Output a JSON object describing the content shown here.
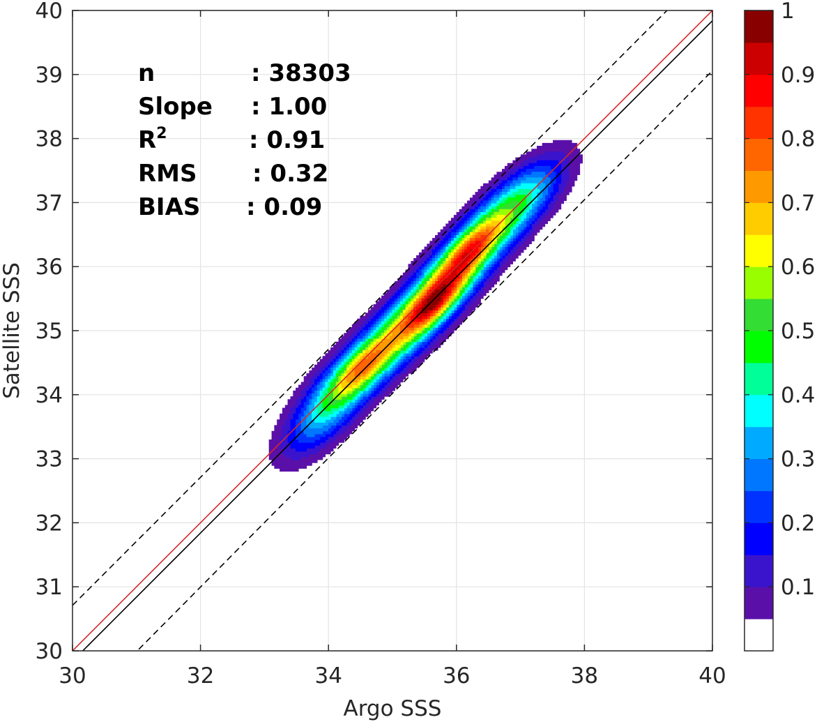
{
  "chart_data": {
    "type": "contour",
    "title": "",
    "xlabel": "Argo SSS",
    "ylabel": "Satellite SSS",
    "xlim": [
      30,
      40
    ],
    "ylim": [
      30,
      40
    ],
    "xticks": [
      "30",
      "32",
      "34",
      "36",
      "38",
      "40"
    ],
    "yticks": [
      "30",
      "31",
      "32",
      "33",
      "34",
      "35",
      "36",
      "37",
      "38",
      "39",
      "40"
    ],
    "grid": true,
    "stats": [
      {
        "label": "n",
        "value": ": 38303"
      },
      {
        "label": "Slope",
        "value": ": 1.00"
      },
      {
        "label": "R",
        "sup": "2",
        "value": ": 0.91"
      },
      {
        "label": "RMS",
        "value": ": 0.32"
      },
      {
        "label": "BIAS",
        "value": ": 0.09"
      }
    ],
    "lines": [
      {
        "kind": "one-to-one",
        "color": "#d62728",
        "style": "solid",
        "points": [
          [
            30,
            30
          ],
          [
            40,
            40
          ]
        ]
      },
      {
        "kind": "regression",
        "color": "#000000",
        "style": "solid",
        "points": [
          [
            30,
            29.84
          ],
          [
            40,
            39.84
          ]
        ]
      },
      {
        "kind": "upper-bound",
        "color": "#000000",
        "style": "dashed",
        "points": [
          [
            30,
            30.71
          ],
          [
            40,
            40.71
          ]
        ]
      },
      {
        "kind": "lower-bound",
        "color": "#000000",
        "style": "dashed",
        "points": [
          [
            30,
            28.98
          ],
          [
            40,
            39.06
          ]
        ]
      }
    ],
    "density_ridge": {
      "points": [
        [
          33.75,
          33.4
        ],
        [
          34.05,
          33.95
        ],
        [
          34.5,
          34.4
        ],
        [
          34.9,
          34.75
        ],
        [
          35.25,
          35.1
        ],
        [
          35.6,
          35.45
        ],
        [
          35.85,
          35.75
        ],
        [
          36.15,
          36.15
        ],
        [
          36.5,
          36.55
        ],
        [
          36.9,
          36.95
        ],
        [
          37.3,
          37.3
        ]
      ],
      "peaks": [
        {
          "x": 35.65,
          "y": 35.42,
          "value": 1.0
        },
        {
          "x": 36.2,
          "y": 36.25,
          "value": 0.85
        },
        {
          "x": 34.5,
          "y": 34.4,
          "value": 0.7
        }
      ]
    },
    "colorbar": {
      "ticks": [
        "0.1",
        "0.2",
        "0.3",
        "0.4",
        "0.5",
        "0.6",
        "0.7",
        "0.8",
        "0.9",
        "1"
      ],
      "levels": [
        {
          "min": 0.0,
          "max": 0.05,
          "color": "#ffffff"
        },
        {
          "min": 0.05,
          "max": 0.1,
          "color": "#5a10a8"
        },
        {
          "min": 0.1,
          "max": 0.15,
          "color": "#3a14cc"
        },
        {
          "min": 0.15,
          "max": 0.2,
          "color": "#0000ff"
        },
        {
          "min": 0.2,
          "max": 0.25,
          "color": "#0033ff"
        },
        {
          "min": 0.25,
          "max": 0.3,
          "color": "#0077ff"
        },
        {
          "min": 0.3,
          "max": 0.35,
          "color": "#00aaff"
        },
        {
          "min": 0.35,
          "max": 0.4,
          "color": "#00ffff"
        },
        {
          "min": 0.4,
          "max": 0.45,
          "color": "#00ff99"
        },
        {
          "min": 0.45,
          "max": 0.5,
          "color": "#00ff00"
        },
        {
          "min": 0.5,
          "max": 0.55,
          "color": "#33dd33"
        },
        {
          "min": 0.55,
          "max": 0.6,
          "color": "#99ff00"
        },
        {
          "min": 0.6,
          "max": 0.65,
          "color": "#ffff00"
        },
        {
          "min": 0.65,
          "max": 0.7,
          "color": "#ffcc00"
        },
        {
          "min": 0.7,
          "max": 0.75,
          "color": "#ff9900"
        },
        {
          "min": 0.75,
          "max": 0.8,
          "color": "#ff6600"
        },
        {
          "min": 0.8,
          "max": 0.85,
          "color": "#ff3300"
        },
        {
          "min": 0.85,
          "max": 0.9,
          "color": "#ff0000"
        },
        {
          "min": 0.9,
          "max": 0.95,
          "color": "#cc0000"
        },
        {
          "min": 0.95,
          "max": 1.0,
          "color": "#880000"
        }
      ]
    }
  }
}
